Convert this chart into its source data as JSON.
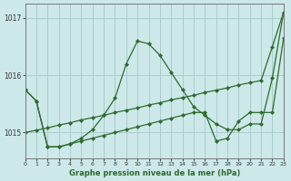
{
  "title": "Graphe pression niveau de la mer (hPa)",
  "bg_color": "#cce8e8",
  "grid_color": "#aacccc",
  "line_color": "#2d6a2d",
  "xlim": [
    0,
    23
  ],
  "ylim": [
    1014.55,
    1017.25
  ],
  "yticks": [
    1015,
    1016,
    1017
  ],
  "xticks": [
    0,
    1,
    2,
    3,
    4,
    5,
    6,
    7,
    8,
    9,
    10,
    11,
    12,
    13,
    14,
    15,
    16,
    17,
    18,
    19,
    20,
    21,
    22,
    23
  ],
  "series1_x": [
    0,
    1,
    2,
    3,
    4,
    5,
    6,
    7,
    8,
    9,
    10,
    11,
    12,
    13,
    14,
    15,
    16,
    17,
    18,
    19,
    20,
    21,
    22,
    23
  ],
  "series1_y": [
    1015.75,
    1015.55,
    1014.75,
    1014.75,
    1014.8,
    1014.9,
    1015.05,
    1015.3,
    1015.6,
    1016.2,
    1016.6,
    1016.55,
    1016.35,
    1016.05,
    1015.75,
    1015.45,
    1015.3,
    1015.15,
    1015.05,
    1015.05,
    1015.15,
    1015.15,
    1015.95,
    1017.1
  ],
  "series2_x": [
    0,
    1,
    2,
    3,
    4,
    5,
    6,
    7,
    8,
    9,
    10,
    11,
    12,
    13,
    14,
    15,
    16,
    17,
    18,
    19,
    20,
    21,
    22,
    23
  ],
  "series2_y": [
    1015.0,
    1015.04,
    1015.08,
    1015.13,
    1015.17,
    1015.22,
    1015.26,
    1015.3,
    1015.35,
    1015.39,
    1015.43,
    1015.48,
    1015.52,
    1015.57,
    1015.61,
    1015.65,
    1015.7,
    1015.74,
    1015.78,
    1015.83,
    1015.87,
    1015.91,
    1016.5,
    1017.1
  ],
  "series3_x": [
    0,
    1,
    2,
    3,
    4,
    5,
    6,
    7,
    8,
    9,
    10,
    11,
    12,
    13,
    14,
    15,
    16,
    17,
    18,
    19,
    20,
    21,
    22,
    23
  ],
  "series3_y": [
    1015.75,
    1015.55,
    1014.75,
    1014.75,
    1014.8,
    1014.85,
    1014.9,
    1014.95,
    1015.0,
    1015.05,
    1015.1,
    1015.15,
    1015.2,
    1015.25,
    1015.3,
    1015.35,
    1015.35,
    1014.85,
    1014.9,
    1015.2,
    1015.35,
    1015.35,
    1015.35,
    1016.65
  ]
}
